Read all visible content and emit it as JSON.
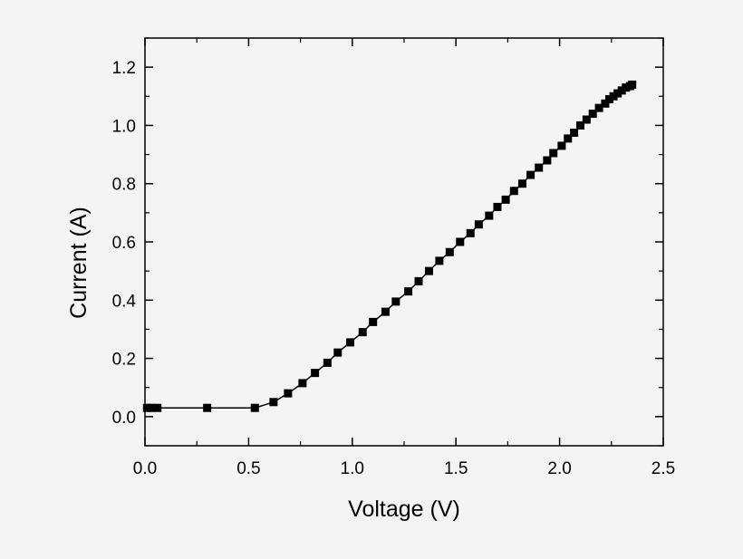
{
  "chart_data": {
    "type": "line",
    "title": "",
    "xlabel": "Voltage (V)",
    "ylabel": "Current (A)",
    "xlim": [
      0.0,
      2.5
    ],
    "ylim": [
      -0.1,
      1.3
    ],
    "x_ticks": [
      "0.0",
      "0.5",
      "1.0",
      "1.5",
      "2.0",
      "2.5"
    ],
    "y_ticks": [
      "0.0",
      "0.2",
      "0.4",
      "0.6",
      "0.8",
      "1.0",
      "1.2"
    ],
    "grid": false,
    "legend": "none",
    "marker": "square",
    "series": [
      {
        "color": "#000000",
        "x": [
          0.01,
          0.03,
          0.06,
          0.3,
          0.53,
          0.62,
          0.69,
          0.76,
          0.82,
          0.88,
          0.93,
          0.99,
          1.05,
          1.1,
          1.16,
          1.21,
          1.27,
          1.32,
          1.37,
          1.42,
          1.47,
          1.52,
          1.57,
          1.61,
          1.66,
          1.7,
          1.74,
          1.78,
          1.82,
          1.86,
          1.9,
          1.94,
          1.97,
          2.01,
          2.04,
          2.07,
          2.1,
          2.13,
          2.16,
          2.19,
          2.22,
          2.24,
          2.26,
          2.28,
          2.3,
          2.32,
          2.34,
          2.35
        ],
        "y": [
          0.03,
          0.03,
          0.03,
          0.03,
          0.03,
          0.05,
          0.08,
          0.115,
          0.15,
          0.185,
          0.22,
          0.255,
          0.29,
          0.325,
          0.36,
          0.395,
          0.43,
          0.465,
          0.5,
          0.535,
          0.565,
          0.6,
          0.63,
          0.66,
          0.69,
          0.72,
          0.745,
          0.775,
          0.8,
          0.83,
          0.855,
          0.88,
          0.905,
          0.93,
          0.955,
          0.975,
          1.0,
          1.02,
          1.04,
          1.06,
          1.075,
          1.09,
          1.1,
          1.11,
          1.12,
          1.13,
          1.135,
          1.14
        ]
      }
    ]
  }
}
